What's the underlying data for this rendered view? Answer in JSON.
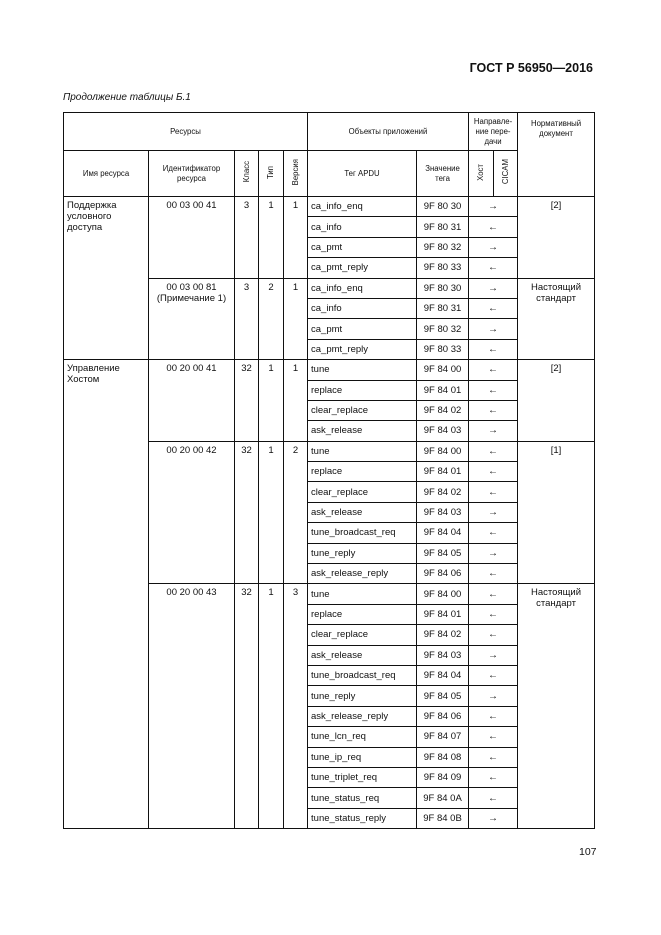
{
  "header": {
    "doc_title": "ГОСТ Р 56950—2016",
    "caption": "Продолжение таблицы Б.1"
  },
  "columns": {
    "resources": "Ресурсы",
    "app_objects": "Объекты приложений",
    "direction": "Направле-ние пере-дачи",
    "normative_doc": "Нормативный документ",
    "resource_name": "Имя ресурса",
    "resource_id": "Идентификатор ресурса",
    "class": "Класс",
    "type": "Тип",
    "version": "Версия",
    "apdu_tag": "Тег APDU",
    "tag_value": "Значение тега",
    "host": "Хост",
    "cicam": "CICAM"
  },
  "groups": [
    {
      "name": "Поддержка условного доступа",
      "subgroups": [
        {
          "id": "00 03 00 41",
          "class": "3",
          "type": "1",
          "version": "1",
          "doc": "[2]",
          "objects": [
            {
              "tag": "ca_info_enq",
              "value": "9F 80 30",
              "dir": "→"
            },
            {
              "tag": "ca_info",
              "value": "9F 80 31",
              "dir": "←"
            },
            {
              "tag": "ca_pmt",
              "value": "9F 80 32",
              "dir": "→"
            },
            {
              "tag": "ca_pmt_reply",
              "value": "9F 80 33",
              "dir": "←"
            }
          ]
        },
        {
          "id": "00 03 00 81 (Примечание 1)",
          "class": "3",
          "type": "2",
          "version": "1",
          "doc": "Настоящий стандарт",
          "objects": [
            {
              "tag": "ca_info_enq",
              "value": "9F 80 30",
              "dir": "→"
            },
            {
              "tag": "ca_info",
              "value": "9F 80 31",
              "dir": "←"
            },
            {
              "tag": "ca_pmt",
              "value": "9F 80 32",
              "dir": "→"
            },
            {
              "tag": "ca_pmt_reply",
              "value": "9F 80 33",
              "dir": "←"
            }
          ]
        }
      ]
    },
    {
      "name": "Управление Хостом",
      "subgroups": [
        {
          "id": "00 20 00 41",
          "class": "32",
          "type": "1",
          "version": "1",
          "doc": "[2]",
          "objects": [
            {
              "tag": "tune",
              "value": "9F 84 00",
              "dir": "←"
            },
            {
              "tag": "replace",
              "value": "9F 84 01",
              "dir": "←"
            },
            {
              "tag": "clear_replace",
              "value": "9F 84 02",
              "dir": "←"
            },
            {
              "tag": "ask_release",
              "value": "9F 84 03",
              "dir": "→"
            }
          ]
        },
        {
          "id": "00 20 00 42",
          "class": "32",
          "type": "1",
          "version": "2",
          "doc": "[1]",
          "objects": [
            {
              "tag": "tune",
              "value": "9F 84 00",
              "dir": "←"
            },
            {
              "tag": "replace",
              "value": "9F 84 01",
              "dir": "←"
            },
            {
              "tag": "clear_replace",
              "value": "9F 84 02",
              "dir": "←"
            },
            {
              "tag": "ask_release",
              "value": "9F 84 03",
              "dir": "→"
            },
            {
              "tag": "tune_broadcast_req",
              "value": "9F 84 04",
              "dir": "←"
            },
            {
              "tag": "tune_reply",
              "value": "9F 84 05",
              "dir": "→"
            },
            {
              "tag": "ask_release_reply",
              "value": "9F 84 06",
              "dir": "←"
            }
          ]
        },
        {
          "id": "00 20 00 43",
          "class": "32",
          "type": "1",
          "version": "3",
          "doc": "Настоящий стандарт",
          "objects": [
            {
              "tag": "tune",
              "value": "9F 84 00",
              "dir": "←"
            },
            {
              "tag": "replace",
              "value": "9F 84 01",
              "dir": "←"
            },
            {
              "tag": "clear_replace",
              "value": "9F 84 02",
              "dir": "←"
            },
            {
              "tag": "ask_release",
              "value": "9F 84 03",
              "dir": "→"
            },
            {
              "tag": "tune_broadcast_req",
              "value": "9F 84 04",
              "dir": "←"
            },
            {
              "tag": "tune_reply",
              "value": "9F 84 05",
              "dir": "→"
            },
            {
              "tag": "ask_release_reply",
              "value": "9F 84 06",
              "dir": "←"
            },
            {
              "tag": "tune_lcn_req",
              "value": "9F 84 07",
              "dir": "←"
            },
            {
              "tag": "tune_ip_req",
              "value": "9F 84 08",
              "dir": "←"
            },
            {
              "tag": "tune_triplet_req",
              "value": "9F 84 09",
              "dir": "←"
            },
            {
              "tag": "tune_status_req",
              "value": "9F 84 0A",
              "dir": "←"
            },
            {
              "tag": "tune_status_reply",
              "value": "9F 84 0B",
              "dir": "→"
            }
          ]
        }
      ]
    }
  ],
  "footer": {
    "page_number": "107"
  }
}
